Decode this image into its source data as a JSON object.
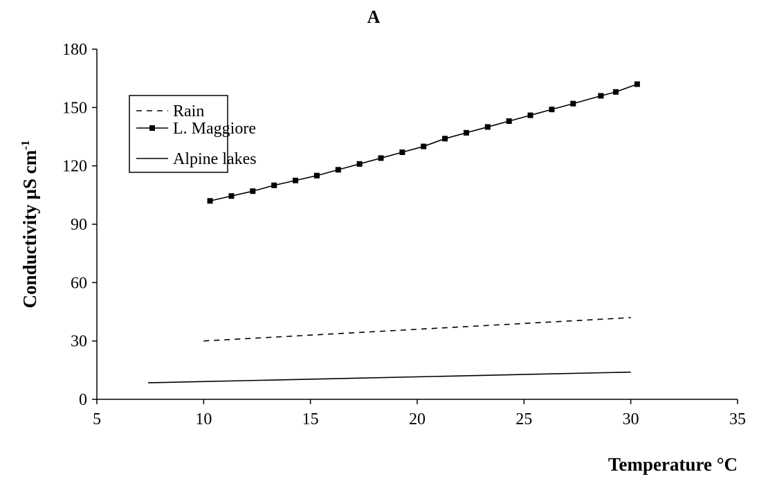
{
  "chart_data": {
    "type": "line",
    "title": "A",
    "x_label": "Temperature °C",
    "y_label": "Conductivity µS cm",
    "y_label_superscript": "-1",
    "xlim": [
      5,
      35
    ],
    "ylim": [
      0,
      180
    ],
    "xticks": [
      5,
      10,
      15,
      20,
      25,
      30,
      35
    ],
    "yticks": [
      0,
      30,
      60,
      90,
      120,
      150,
      180
    ],
    "grid": false,
    "legend": "upper left",
    "series": [
      {
        "name": "Rain",
        "color": "#000000",
        "line_style": "dashed",
        "marker": null,
        "x": [
          10,
          30
        ],
        "values": [
          30,
          42
        ]
      },
      {
        "name": "L. Maggiore",
        "color": "#000000",
        "line_style": "solid",
        "marker": "square",
        "x": [
          10.3,
          11.3,
          12.3,
          13.3,
          14.3,
          15.3,
          16.3,
          17.3,
          18.3,
          19.3,
          20.3,
          21.3,
          22.3,
          23.3,
          24.3,
          25.3,
          26.3,
          27.3,
          28.6,
          29.3,
          30.3
        ],
        "values": [
          102,
          104.5,
          107,
          110,
          112.5,
          115,
          118,
          121,
          124,
          127,
          130,
          134,
          137,
          140,
          143,
          146,
          149,
          152,
          156,
          158,
          162
        ]
      },
      {
        "name": "Alpine lakes",
        "color": "#000000",
        "line_style": "solid",
        "marker": null,
        "x": [
          7.4,
          30
        ],
        "values": [
          8.5,
          14
        ]
      }
    ]
  }
}
